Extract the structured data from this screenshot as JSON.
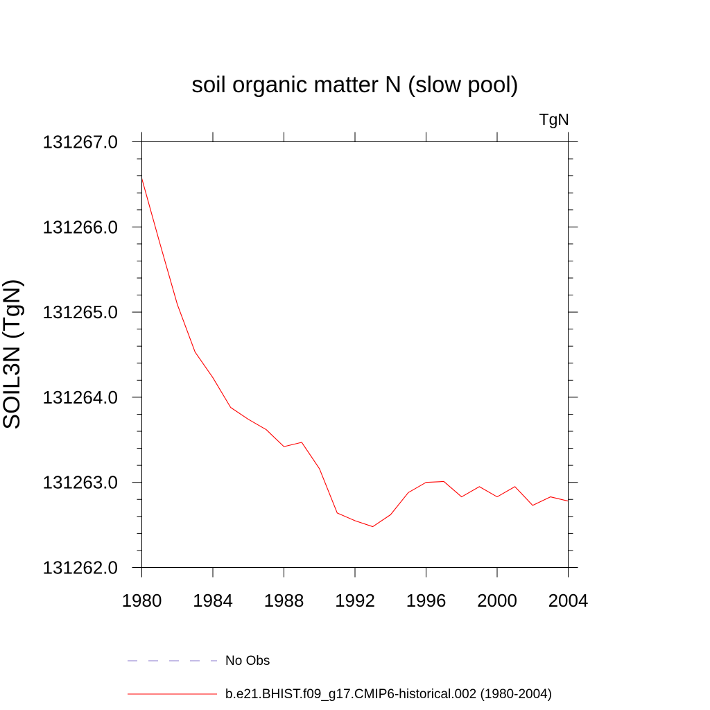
{
  "chart_data": {
    "type": "line",
    "title": "soil organic matter N (slow pool)",
    "units_label": "TgN",
    "ylabel": "SOIL3N  (TgN)",
    "xlabel": "",
    "xlim": [
      1980,
      2004
    ],
    "ylim": [
      131262.0,
      131267.0
    ],
    "x_ticks": [
      1980,
      1984,
      1988,
      1992,
      1996,
      2000,
      2004
    ],
    "x_tick_labels": [
      "1980",
      "1984",
      "1988",
      "1992",
      "1996",
      "2000",
      "2004"
    ],
    "y_ticks": [
      131262.0,
      131263.0,
      131264.0,
      131265.0,
      131266.0,
      131267.0
    ],
    "y_tick_labels": [
      "131262.0",
      "131263.0",
      "131264.0",
      "131265.0",
      "131266.0",
      "131267.0"
    ],
    "grid": false,
    "series": [
      {
        "name": "b.e21.BHIST.f09_g17.CMIP6-historical.002 (1980-2004)",
        "color": "#ff0000",
        "style": "solid",
        "x": [
          1980,
          1981,
          1982,
          1983,
          1984,
          1985,
          1986,
          1987,
          1988,
          1989,
          1990,
          1991,
          1992,
          1993,
          1994,
          1995,
          1996,
          1997,
          1998,
          1999,
          2000,
          2001,
          2002,
          2003,
          2004
        ],
        "values": [
          131266.57,
          131265.82,
          131265.09,
          131264.53,
          131264.23,
          131263.88,
          131263.74,
          131263.62,
          131263.42,
          131263.47,
          131263.16,
          131262.64,
          131262.55,
          131262.48,
          131262.62,
          131262.88,
          131263.0,
          131263.01,
          131262.83,
          131262.95,
          131262.83,
          131262.95,
          131262.73,
          131262.83,
          131262.78
        ]
      }
    ],
    "legend": [
      {
        "label": "No Obs",
        "color": "#8877cc",
        "style": "dashed"
      },
      {
        "label": "b.e21.BHIST.f09_g17.CMIP6-historical.002 (1980-2004)",
        "color": "#ff0000",
        "style": "solid"
      }
    ],
    "legend_position": "bottom"
  }
}
